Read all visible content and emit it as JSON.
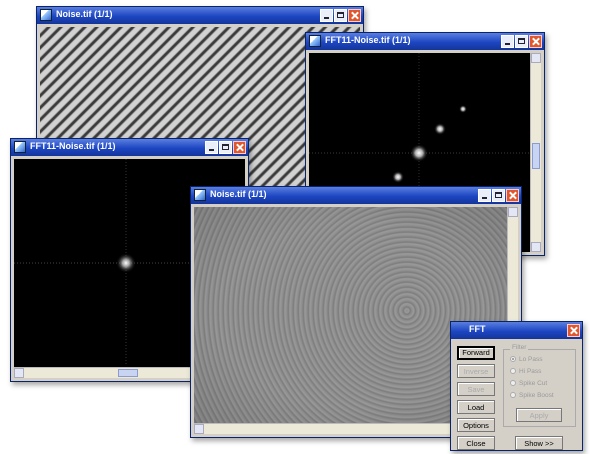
{
  "windows": {
    "noise_original": {
      "title": "Noise.tif (1/1)"
    },
    "fft_back": {
      "title": "FFT11-Noise.tif (1/1)"
    },
    "fft_front": {
      "title": "FFT11-Noise.tif (1/1)"
    },
    "noise_filtered": {
      "title": "Noise.tif (1/1)"
    },
    "fft_dialog": {
      "title": "FFT"
    }
  },
  "fft_dialog": {
    "buttons": {
      "forward": "Forward",
      "inverse": "Inverse",
      "save": "Save",
      "load": "Load",
      "options": "Options",
      "close": "Close",
      "show": "Show >>",
      "apply": "Apply"
    },
    "filter": {
      "label": "Filter",
      "options": [
        "Lo Pass",
        "Hi Pass",
        "Spike Cut",
        "Spike Boost"
      ],
      "selected": "Lo Pass"
    }
  },
  "colors": {
    "titlebar_active": "#1c46c2",
    "close_button": "#e0572e",
    "window_face": "#d4d0c8"
  },
  "icons": {
    "app_icon": "image-document-icon",
    "minimize": "minimize-icon",
    "maximize": "maximize-icon",
    "close": "close-icon"
  }
}
